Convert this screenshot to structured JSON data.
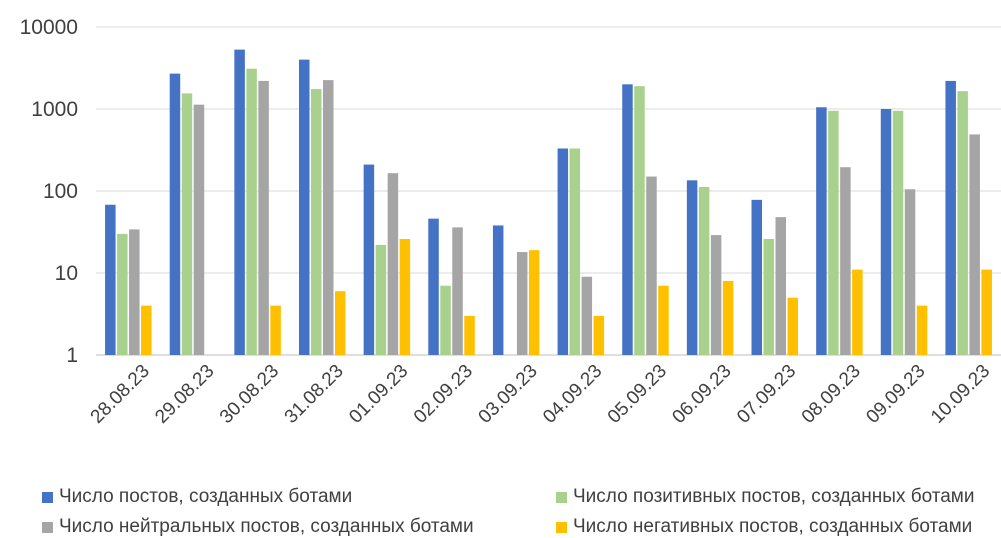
{
  "chart_data": {
    "type": "bar",
    "yscale": "log",
    "ylim": [
      1,
      10000
    ],
    "ticks": [
      "1",
      "10",
      "100",
      "1000",
      "10000"
    ],
    "grid": true,
    "legend_position": "bottom",
    "categories": [
      "28.08.23",
      "29.08.23",
      "30.08.23",
      "31.08.23",
      "01.09.23",
      "02.09.23",
      "03.09.23",
      "04.09.23",
      "05.09.23",
      "06.09.23",
      "07.09.23",
      "08.09.23",
      "09.09.23",
      "10.09.23"
    ],
    "series": [
      {
        "name": "Число постов, созданных ботами",
        "color": "#4472C4",
        "values": [
          68,
          2700,
          5300,
          4000,
          210,
          46,
          38,
          330,
          2000,
          135,
          78,
          1050,
          1000,
          2200
        ]
      },
      {
        "name": "Число позитивных постов, созданных ботами",
        "color": "#A9D18E",
        "values": [
          30,
          1550,
          3100,
          1750,
          22,
          7,
          null,
          330,
          1900,
          112,
          26,
          950,
          950,
          1650
        ]
      },
      {
        "name": "Число нейтральных постов, созданных ботами",
        "color": "#A5A5A5",
        "values": [
          34,
          1130,
          2200,
          2250,
          165,
          36,
          18,
          9,
          150,
          29,
          48,
          195,
          105,
          490
        ]
      },
      {
        "name": "Число негативных постов, созданных ботами",
        "color": "#FFC000",
        "values": [
          4,
          null,
          4,
          6,
          26,
          3,
          19,
          3,
          7,
          8,
          5,
          11,
          4,
          11
        ]
      }
    ]
  },
  "legend_rows": [
    [
      0,
      1
    ],
    [
      2,
      3
    ]
  ]
}
